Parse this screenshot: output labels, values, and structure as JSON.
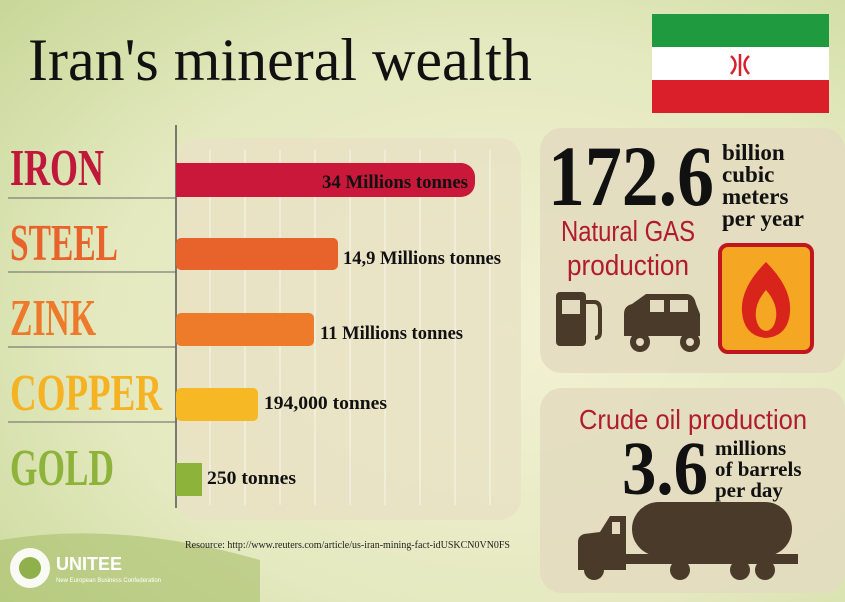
{
  "title": "Iran's mineral wealth",
  "minerals": [
    {
      "name": "IRON",
      "label": "34 Millions tonnes"
    },
    {
      "name": "STEEL",
      "label": "14,9 Millions tonnes"
    },
    {
      "name": "ZINK",
      "label": "11 Millions tonnes"
    },
    {
      "name": "COPPER",
      "label": "194,000 tonnes"
    },
    {
      "name": "GOLD",
      "label": "250 tonnes"
    }
  ],
  "source": "Resource: http://www.reuters.com/article/us-iran-mining-fact-idUSKCN0VN0FS",
  "gas": {
    "value": "172.6",
    "unit": [
      "billion",
      "cubic",
      "meters",
      "per year"
    ],
    "label": [
      "Natural GAS",
      "production"
    ]
  },
  "oil": {
    "label": "Crude oil production",
    "value": "3.6",
    "unit": [
      "millions",
      "of barrels",
      "per day"
    ]
  },
  "logo": {
    "name": "UNITEE",
    "tagline": "New European Business Confederation"
  }
}
